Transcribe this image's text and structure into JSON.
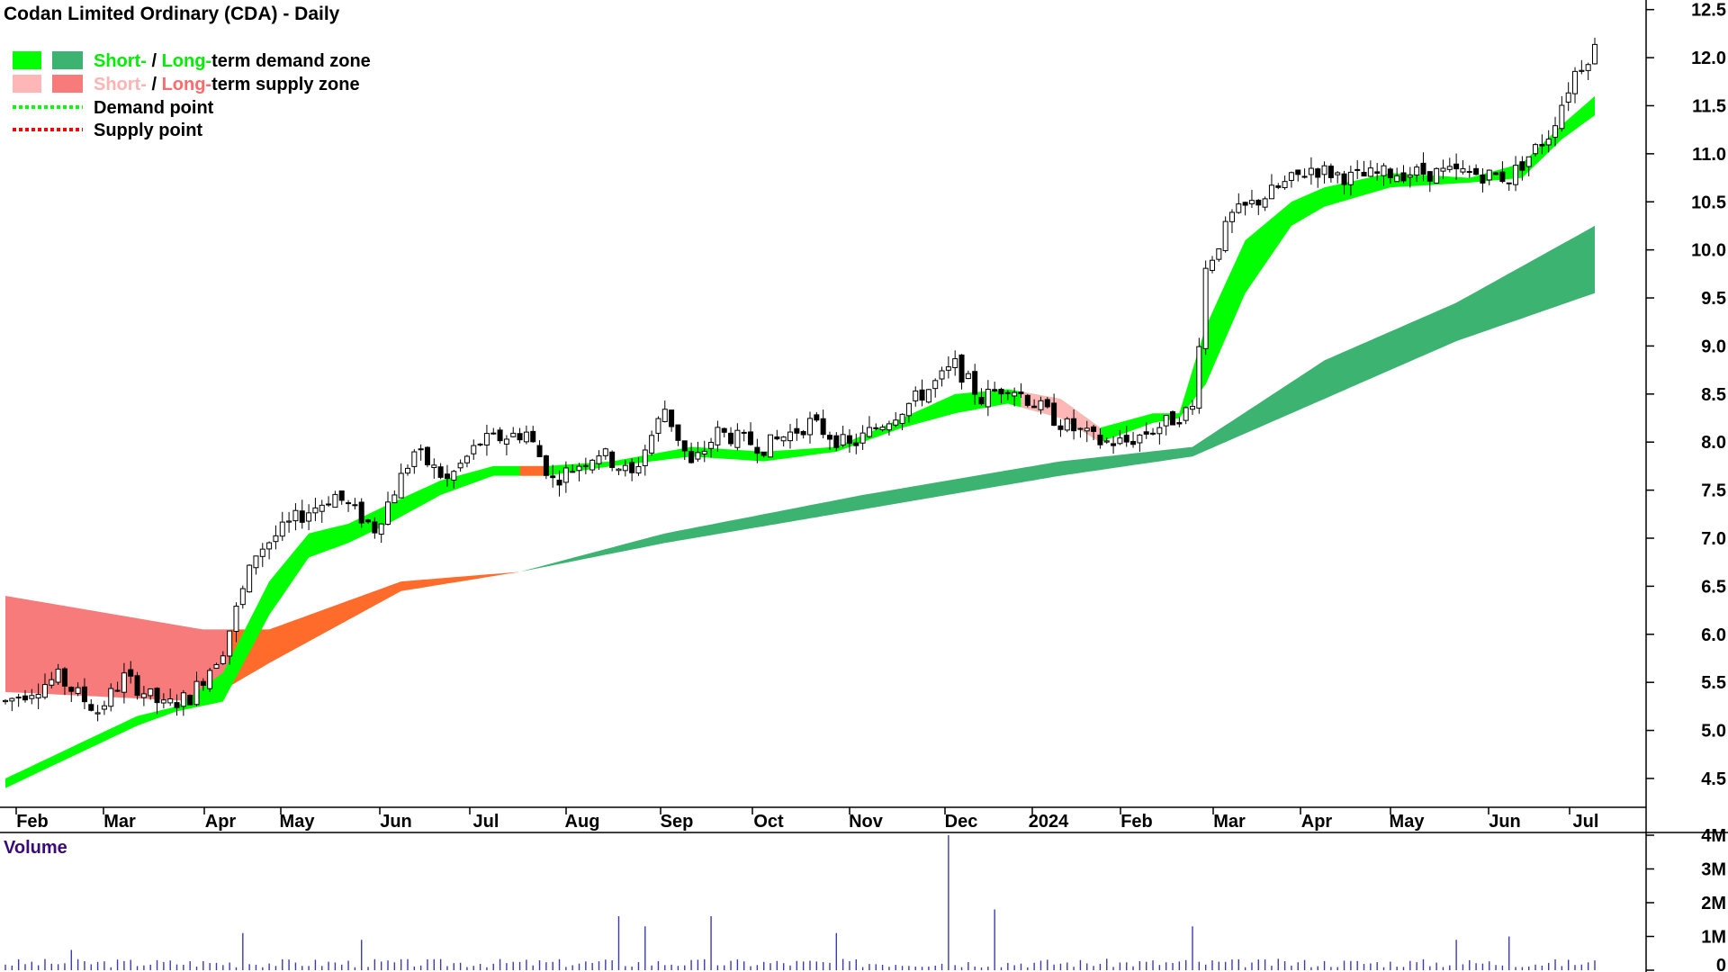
{
  "title": "Codan Limited Ordinary (CDA) - Daily",
  "legend": {
    "items": [
      {
        "parts": [
          {
            "text": "Short-",
            "color": "#00ee00"
          },
          {
            "text": " / ",
            "color": "#000000"
          },
          {
            "text": "Long-",
            "color": "#00ee00"
          },
          {
            "text": "term demand zone",
            "color": "#000000"
          }
        ],
        "swatches": [
          "#00ff00",
          "#3cb371"
        ]
      },
      {
        "parts": [
          {
            "text": "Short-",
            "color": "#ffb3b3"
          },
          {
            "text": " / ",
            "color": "#000000"
          },
          {
            "text": "Long-",
            "color": "#ff6b6b"
          },
          {
            "text": "term supply zone",
            "color": "#000000"
          }
        ],
        "swatches": [
          "#ffb6b6",
          "#f77b7b"
        ]
      },
      {
        "parts": [
          {
            "text": "Demand point",
            "color": "#000000"
          }
        ],
        "line": "#00ff00"
      },
      {
        "parts": [
          {
            "text": "Supply point",
            "color": "#000000"
          }
        ],
        "line": "#ff0000"
      }
    ]
  },
  "volume_label": "Volume",
  "colors": {
    "short_demand": "#00ff00",
    "long_demand": "#3cb371",
    "short_supply": "#ffb6b6",
    "long_supply": "#f77b7b",
    "transition": "#ff6b2b",
    "volume_bar": "#3b3bb0",
    "candle": "#000000"
  },
  "chart_data": {
    "type": "candlestick",
    "title": "Codan Limited Ordinary (CDA) - Daily",
    "x_ticks": [
      "Feb",
      "Mar",
      "Apr",
      "May",
      "Jun",
      "Jul",
      "Aug",
      "Sep",
      "Oct",
      "Nov",
      "Dec",
      "2024",
      "Feb",
      "Mar",
      "Apr",
      "May",
      "Jun",
      "Jul"
    ],
    "y_ticks": [
      "12.5",
      "12.0",
      "11.5",
      "11.0",
      "10.5",
      "10.0",
      "9.5",
      "9.0",
      "8.5",
      "8.0",
      "7.5",
      "7.0",
      "6.5",
      "6.0",
      "5.5",
      "5.0",
      "4.5"
    ],
    "ylim": [
      4.2,
      12.6
    ],
    "volume_ticks": [
      "4M",
      "3M",
      "2M",
      "1M",
      "0"
    ],
    "volume_ylim": [
      0,
      4000000
    ],
    "price_path": [
      [
        0,
        5.3
      ],
      [
        8,
        5.55
      ],
      [
        14,
        5.2
      ],
      [
        18,
        5.55
      ],
      [
        24,
        5.25
      ],
      [
        28,
        5.35
      ],
      [
        33,
        5.85
      ],
      [
        38,
        6.85
      ],
      [
        44,
        7.2
      ],
      [
        50,
        7.45
      ],
      [
        56,
        7.1
      ],
      [
        62,
        7.9
      ],
      [
        67,
        7.6
      ],
      [
        72,
        8.0
      ],
      [
        79,
        8.1
      ],
      [
        83,
        7.6
      ],
      [
        90,
        7.9
      ],
      [
        95,
        7.65
      ],
      [
        100,
        8.35
      ],
      [
        104,
        7.75
      ],
      [
        108,
        8.1
      ],
      [
        115,
        7.95
      ],
      [
        122,
        8.2
      ],
      [
        128,
        7.95
      ],
      [
        135,
        8.3
      ],
      [
        140,
        8.55
      ],
      [
        144,
        8.8
      ],
      [
        148,
        8.45
      ],
      [
        152,
        8.6
      ],
      [
        160,
        8.2
      ],
      [
        166,
        8.0
      ],
      [
        170,
        8.0
      ],
      [
        176,
        8.2
      ],
      [
        180,
        8.35
      ],
      [
        182,
        9.8
      ],
      [
        186,
        10.35
      ],
      [
        192,
        10.6
      ],
      [
        198,
        10.85
      ],
      [
        204,
        10.75
      ],
      [
        210,
        10.8
      ],
      [
        216,
        10.8
      ],
      [
        222,
        10.8
      ],
      [
        228,
        10.75
      ],
      [
        234,
        11.2
      ],
      [
        238,
        11.85
      ],
      [
        241,
        12.1
      ]
    ],
    "short_zone": [
      [
        0,
        4.5,
        4.4
      ],
      [
        20,
        5.15,
        5.05
      ],
      [
        26,
        5.25,
        5.2
      ],
      [
        33,
        5.6,
        5.3
      ],
      [
        40,
        6.55,
        6.2
      ],
      [
        46,
        7.05,
        6.8
      ],
      [
        52,
        7.15,
        6.95
      ],
      [
        58,
        7.35,
        7.15
      ],
      [
        66,
        7.6,
        7.45
      ],
      [
        74,
        7.75,
        7.65
      ],
      [
        82,
        7.75,
        7.65
      ],
      [
        92,
        7.8,
        7.75
      ],
      [
        104,
        7.95,
        7.85
      ],
      [
        115,
        7.9,
        7.8
      ],
      [
        126,
        7.95,
        7.9
      ],
      [
        136,
        8.25,
        8.15
      ],
      [
        144,
        8.5,
        8.3
      ],
      [
        152,
        8.55,
        8.4
      ],
      [
        160,
        8.45,
        8.25
      ],
      [
        166,
        8.15,
        8.0
      ],
      [
        174,
        8.3,
        8.2
      ],
      [
        178,
        8.3,
        8.25
      ],
      [
        182,
        9.2,
        8.6
      ],
      [
        188,
        10.1,
        9.55
      ],
      [
        195,
        10.5,
        10.25
      ],
      [
        200,
        10.65,
        10.45
      ],
      [
        210,
        10.8,
        10.65
      ],
      [
        222,
        10.75,
        10.7
      ],
      [
        230,
        10.9,
        10.75
      ],
      [
        236,
        11.3,
        11.15
      ],
      [
        241,
        11.6,
        11.4
      ]
    ],
    "long_zone": [
      [
        0,
        6.4,
        5.4
      ],
      [
        30,
        6.05,
        5.3
      ],
      [
        40,
        6.05,
        5.7
      ],
      [
        60,
        6.55,
        6.45
      ],
      [
        78,
        6.65,
        6.65
      ],
      [
        100,
        7.05,
        6.95
      ],
      [
        130,
        7.45,
        7.3
      ],
      [
        160,
        7.8,
        7.65
      ],
      [
        180,
        7.95,
        7.85
      ],
      [
        200,
        8.85,
        8.45
      ],
      [
        220,
        9.45,
        9.05
      ],
      [
        241,
        10.25,
        9.55
      ]
    ],
    "volume_profile": {
      "base": 200000,
      "spikes": [
        [
          10,
          600000
        ],
        [
          36,
          1100000
        ],
        [
          54,
          900000
        ],
        [
          93,
          1600000
        ],
        [
          97,
          1300000
        ],
        [
          107,
          1600000
        ],
        [
          126,
          1100000
        ],
        [
          143,
          4000000
        ],
        [
          150,
          1800000
        ],
        [
          180,
          1300000
        ],
        [
          220,
          900000
        ],
        [
          228,
          1000000
        ]
      ]
    },
    "n_days": 242
  }
}
